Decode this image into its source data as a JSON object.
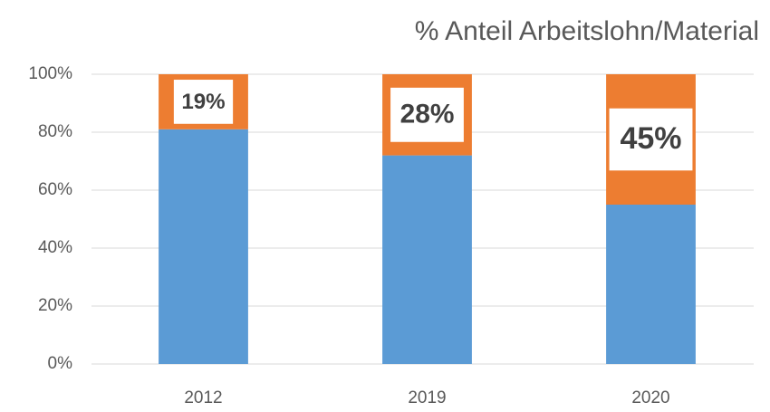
{
  "chart_data": {
    "type": "stacked_bar",
    "title": "% Anteil Arbeitslohn/Material",
    "categories": [
      "2012",
      "2019",
      "2020"
    ],
    "series": [
      {
        "color": "#5b9bd5",
        "values": [
          81,
          72,
          55
        ]
      },
      {
        "color": "#ed7d31",
        "values": [
          19,
          28,
          45
        ],
        "value_labels": [
          "19%",
          "28%",
          "45%"
        ]
      }
    ],
    "ylim": [
      0,
      100
    ],
    "yticks": [
      {
        "value": 0,
        "label": "0%"
      },
      {
        "value": 20,
        "label": "20%"
      },
      {
        "value": 40,
        "label": "40%"
      },
      {
        "value": 60,
        "label": "60%"
      },
      {
        "value": 80,
        "label": "80%"
      },
      {
        "value": 100,
        "label": "100%"
      }
    ],
    "grid": true
  }
}
